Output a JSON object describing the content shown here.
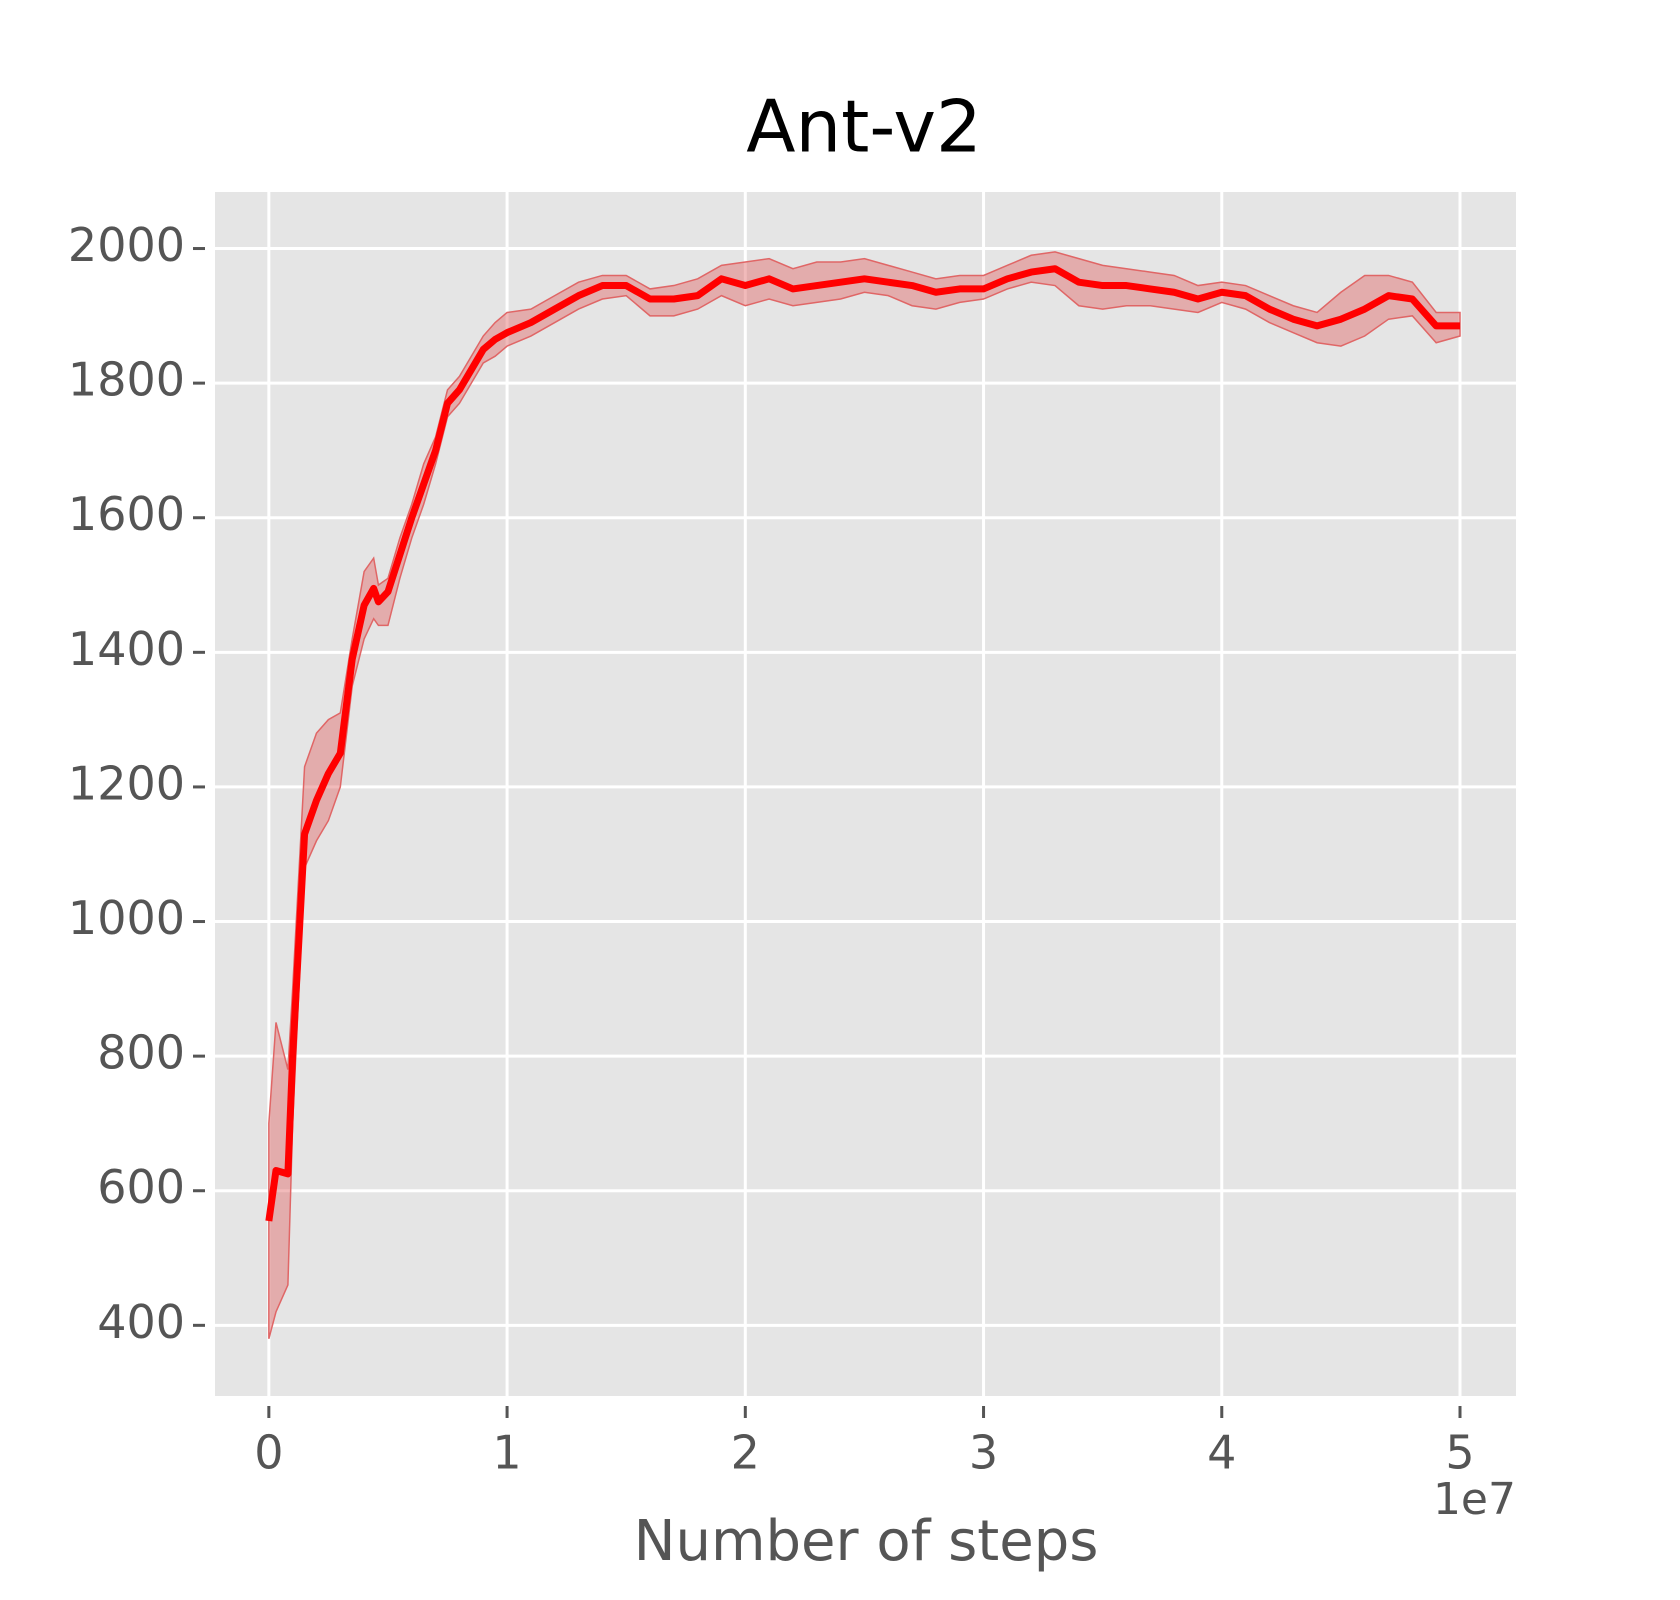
{
  "chart_data": {
    "type": "line",
    "title": "Ant-v2",
    "xlabel": "Number of steps",
    "x_offset_label": "1e7",
    "x": [
      0,
      300000,
      800000,
      1000000,
      1500000,
      2000000,
      2500000,
      3000000,
      3500000,
      4000000,
      4400000,
      4600000,
      5000000,
      5500000,
      6000000,
      6500000,
      7000000,
      7500000,
      8000000,
      8500000,
      9000000,
      9500000,
      10000000,
      11000000,
      12000000,
      13000000,
      14000000,
      15000000,
      16000000,
      17000000,
      18000000,
      19000000,
      20000000,
      21000000,
      22000000,
      23000000,
      24000000,
      25000000,
      26000000,
      27000000,
      28000000,
      29000000,
      30000000,
      31000000,
      32000000,
      33000000,
      34000000,
      35000000,
      36000000,
      37000000,
      38000000,
      39000000,
      40000000,
      41000000,
      42000000,
      43000000,
      44000000,
      45000000,
      46000000,
      47000000,
      48000000,
      49000000,
      50000000
    ],
    "values": [
      555,
      630,
      625,
      800,
      1130,
      1180,
      1220,
      1250,
      1390,
      1470,
      1495,
      1475,
      1490,
      1545,
      1600,
      1650,
      1700,
      1770,
      1790,
      1820,
      1850,
      1865,
      1875,
      1890,
      1910,
      1930,
      1945,
      1945,
      1925,
      1925,
      1930,
      1955,
      1945,
      1955,
      1940,
      1945,
      1950,
      1955,
      1950,
      1945,
      1935,
      1940,
      1940,
      1955,
      1965,
      1970,
      1950,
      1945,
      1945,
      1940,
      1935,
      1925,
      1935,
      1930,
      1910,
      1895,
      1885,
      1895,
      1910,
      1930,
      1925,
      1885,
      1885
    ],
    "band_lower": [
      380,
      420,
      460,
      700,
      1080,
      1120,
      1150,
      1200,
      1350,
      1420,
      1450,
      1440,
      1440,
      1510,
      1570,
      1620,
      1680,
      1750,
      1770,
      1800,
      1830,
      1840,
      1855,
      1870,
      1890,
      1910,
      1925,
      1930,
      1900,
      1900,
      1910,
      1930,
      1915,
      1925,
      1915,
      1920,
      1925,
      1935,
      1930,
      1915,
      1910,
      1920,
      1925,
      1940,
      1950,
      1945,
      1915,
      1910,
      1915,
      1915,
      1910,
      1905,
      1920,
      1910,
      1890,
      1875,
      1860,
      1855,
      1870,
      1895,
      1900,
      1860,
      1870
    ],
    "band_upper": [
      700,
      850,
      780,
      900,
      1230,
      1280,
      1300,
      1310,
      1420,
      1520,
      1540,
      1500,
      1510,
      1570,
      1620,
      1680,
      1720,
      1790,
      1810,
      1840,
      1870,
      1890,
      1905,
      1910,
      1930,
      1950,
      1960,
      1960,
      1940,
      1945,
      1955,
      1975,
      1980,
      1985,
      1970,
      1980,
      1980,
      1985,
      1975,
      1965,
      1955,
      1960,
      1960,
      1975,
      1990,
      1995,
      1985,
      1975,
      1970,
      1965,
      1960,
      1945,
      1950,
      1945,
      1930,
      1915,
      1905,
      1935,
      1960,
      1960,
      1950,
      1905,
      1905
    ],
    "color": "#ff0000",
    "band_color": "#e06666",
    "xlim": [
      -2260000,
      52350000
    ],
    "xticks": [
      {
        "value": 0,
        "label": "0"
      },
      {
        "value": 10000000,
        "label": "1"
      },
      {
        "value": 20000000,
        "label": "2"
      },
      {
        "value": 30000000,
        "label": "3"
      },
      {
        "value": 40000000,
        "label": "4"
      },
      {
        "value": 50000000,
        "label": "5"
      }
    ],
    "ylim": [
      295,
      2084
    ],
    "yticks": [
      400,
      600,
      800,
      1000,
      1200,
      1400,
      1600,
      1800,
      2000
    ],
    "grid": true
  }
}
